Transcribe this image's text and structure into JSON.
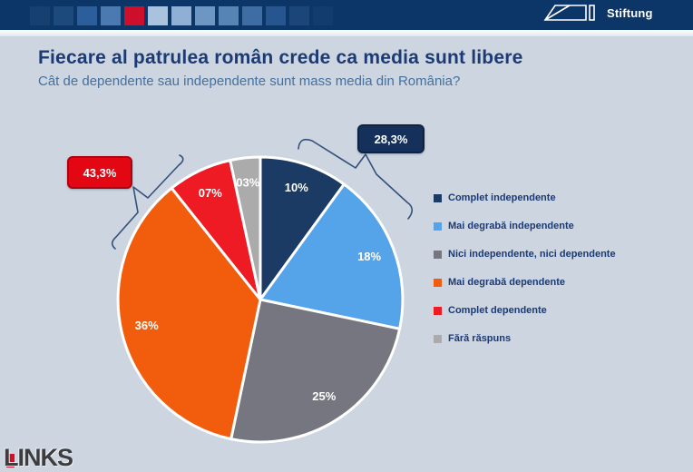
{
  "header": {
    "brand_text": "Stiftung",
    "bg_color": "#0D3668",
    "squares": [
      "#16406F",
      "#1D4A7D",
      "#2B5E9A",
      "#4A7AB0",
      "#CE0F2C",
      "#A9C3DE",
      "#8FB0D4",
      "#6E96C2",
      "#5685B5",
      "#3E6DA4",
      "#275590",
      "#1B4679",
      "#123C6E"
    ]
  },
  "slide": {
    "title": "Fiecare al patrulea român crede ca media sunt libere",
    "subtitle": "Cât de dependente sau independente sunt mass media din România?",
    "background_color": "#CCD5E0",
    "footer_logo": "LINKS"
  },
  "chart_data": {
    "type": "pie",
    "title": "Cât de dependente sau independente sunt mass media din România?",
    "unit": "%",
    "direction": "clockwise",
    "start_angle_deg": 0,
    "legend_position": "right",
    "slices": [
      {
        "label": "Complet independente",
        "value": 10,
        "display": "10%",
        "color": "#1B3A64"
      },
      {
        "label": "Mai degrabă independente",
        "value": 18.3,
        "display": "18%",
        "color": "#55A3E8"
      },
      {
        "label": "Nici independente, nici dependente",
        "value": 25,
        "display": "25%",
        "color": "#75767F"
      },
      {
        "label": "Mai degrabă dependente",
        "value": 36,
        "display": "36%",
        "color": "#F25C0D"
      },
      {
        "label": "Complet dependente",
        "value": 7.3,
        "display": "07%",
        "color": "#EE1B24"
      },
      {
        "label": "Fără răspuns",
        "value": 3.4,
        "display": "03%",
        "color": "#ABABAB"
      }
    ],
    "callouts": [
      {
        "text": "28,3%",
        "color": "#15315B",
        "border": "#0E2342"
      },
      {
        "text": "43,3%",
        "color": "#E30613",
        "border": "#B00010"
      }
    ]
  }
}
